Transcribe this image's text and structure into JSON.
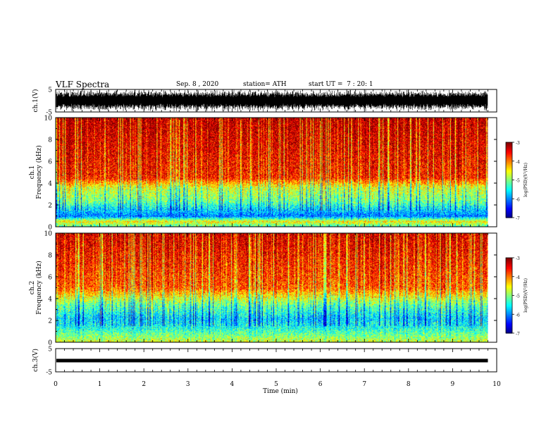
{
  "header": {
    "title": "VLF Spectra",
    "date": "Sep. 8 , 2020",
    "station": "station= ATH",
    "start": "start UT =  7 : 20: 1"
  },
  "chart_data": [
    {
      "type": "line",
      "panel": "ch.1 waveform",
      "ylabel": "ch.1(V)",
      "ylim": [
        -5,
        5
      ],
      "yticks": [
        "5",
        "-5"
      ],
      "xlim": [
        0,
        10
      ],
      "data_end_min": 9.8,
      "signal": "dense fluctuating trace, mostly between -5 and 5 V",
      "color": "#000000"
    },
    {
      "type": "heatmap",
      "panel": "ch.1 spectrogram",
      "ylabel": "ch.1\nFrequency (kHz)",
      "ylim": [
        0,
        10
      ],
      "yticks": [
        "0",
        "2",
        "4",
        "6",
        "8",
        "10"
      ],
      "xlim": [
        0,
        10
      ],
      "data_end_min": 9.8,
      "colorbar": {
        "label": "log(PSD)(V²/Hz)",
        "range": [
          -7,
          -3
        ],
        "ticks": [
          "-3",
          "-4",
          "-5",
          "-6",
          "-7"
        ]
      },
      "bands_kHz_to_logPSD": [
        [
          0.0,
          -5.3
        ],
        [
          0.5,
          -4.4
        ],
        [
          1.0,
          -6.0
        ],
        [
          1.6,
          -5.6
        ],
        [
          2.4,
          -5.0
        ],
        [
          3.6,
          -4.6
        ],
        [
          4.5,
          -3.6
        ],
        [
          10.0,
          -3.2
        ]
      ]
    },
    {
      "type": "heatmap",
      "panel": "ch.2 spectrogram",
      "ylabel": "ch.2\nFrequency (kHz)",
      "ylim": [
        0,
        10
      ],
      "yticks": [
        "0",
        "2",
        "4",
        "6",
        "8",
        "10"
      ],
      "xlim": [
        0,
        10
      ],
      "data_end_min": 9.8,
      "colorbar": {
        "label": "log(PSD)(V²/Hz)",
        "range": [
          -7,
          -3
        ],
        "ticks": [
          "-3",
          "-4",
          "-5",
          "-6",
          "-7"
        ]
      },
      "bands_kHz_to_logPSD": [
        [
          0.0,
          -4.6
        ],
        [
          0.7,
          -5.0
        ],
        [
          1.4,
          -5.4
        ],
        [
          2.2,
          -5.6
        ],
        [
          3.5,
          -5.0
        ],
        [
          5.0,
          -3.8
        ],
        [
          10.0,
          -3.3
        ]
      ]
    },
    {
      "type": "line",
      "panel": "ch.3 waveform",
      "ylabel": "ch.3(V)",
      "ylim": [
        -5,
        5
      ],
      "yticks": [
        "5",
        "-5"
      ],
      "xlim": [
        0,
        10
      ],
      "data_end_min": 9.8,
      "signal": "thick flat trace near 0 V",
      "color": "#000000"
    }
  ],
  "x_axis": {
    "label": "Time (min)",
    "ticks": [
      "0",
      "1",
      "2",
      "3",
      "4",
      "5",
      "6",
      "7",
      "8",
      "9",
      "10"
    ]
  }
}
